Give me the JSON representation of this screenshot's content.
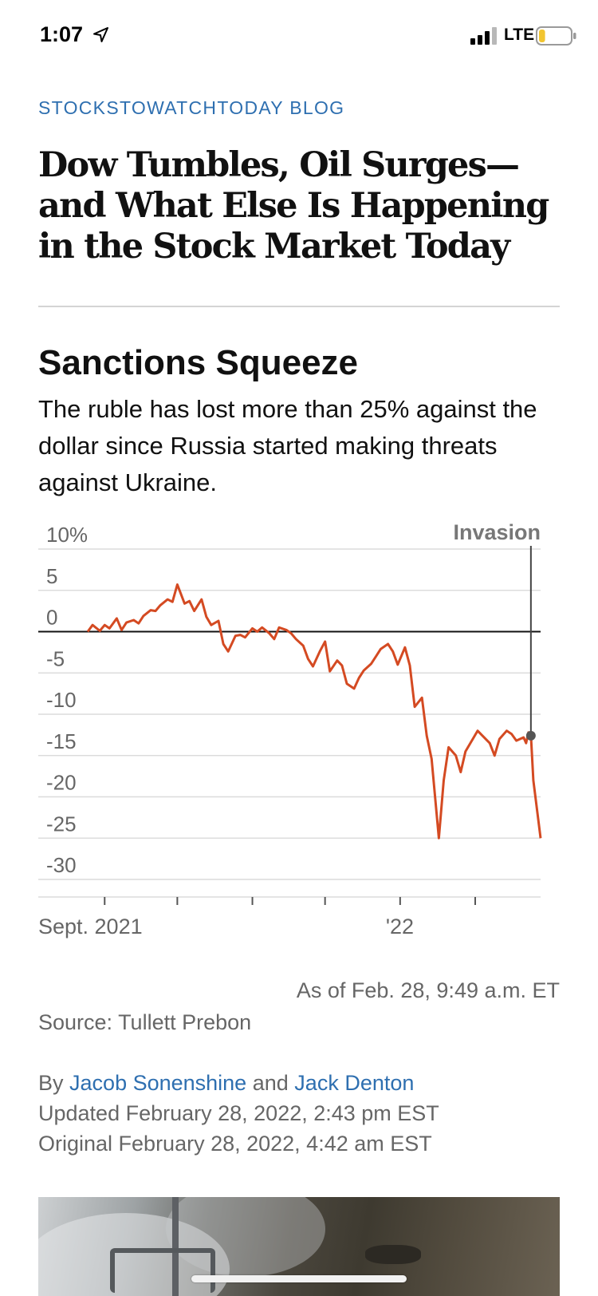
{
  "status_bar": {
    "time": "1:07",
    "carrier": "LTE",
    "battery_level": 0.2,
    "battery_color": "#f2c530"
  },
  "article": {
    "kicker": "STOCKSTOWATCHTODAY BLOG",
    "headline": "Dow Tumbles, Oil Surges—and What Else Is Happening in the Stock Market Today",
    "byline_prefix": "By",
    "author1": "Jacob Sonenshine",
    "byline_conjunction": "and",
    "author2": "Jack Denton",
    "updated": "Updated February 28, 2022, 2:43 pm EST",
    "original": "Original February 28, 2022, 4:42 am EST",
    "link_color": "#2e6fb0"
  },
  "chart_data": {
    "type": "line",
    "title": "Sanctions Squeeze",
    "subtitle": "The ruble has lost more than 25% against the dollar since Russia started making threats against Ukraine.",
    "ylim": [
      -30,
      10
    ],
    "yticks": [
      10,
      5,
      0,
      -5,
      -10,
      -15,
      -20,
      -25,
      -30
    ],
    "ytick_labels": [
      "10%",
      "5",
      "0",
      "-5",
      "-10",
      "-15",
      "-20",
      "-25",
      "-30"
    ],
    "xlim": [
      "2021-08-25",
      "2022-02-28"
    ],
    "x_tick_dates": [
      "2021-09-01",
      "2021-10-01",
      "2021-11-01",
      "2021-12-01",
      "2022-01-01",
      "2022-02-01"
    ],
    "x_tick_labels": [
      {
        "date": "2021-09-01",
        "label": "Sept. 2021"
      },
      {
        "date": "2022-01-01",
        "label": "'22"
      }
    ],
    "annotation": {
      "label": "Invasion",
      "date": "2022-02-24",
      "value": -12.6
    },
    "line_color": "#d44a22",
    "series": [
      {
        "x": [
          "2021-08-25",
          "2021-08-27",
          "2021-08-30",
          "2021-09-01",
          "2021-09-03",
          "2021-09-06",
          "2021-09-08",
          "2021-09-10",
          "2021-09-13",
          "2021-09-15",
          "2021-09-17",
          "2021-09-20",
          "2021-09-22",
          "2021-09-24",
          "2021-09-27",
          "2021-09-29",
          "2021-10-01",
          "2021-10-04",
          "2021-10-06",
          "2021-10-08",
          "2021-10-11",
          "2021-10-13",
          "2021-10-15",
          "2021-10-18",
          "2021-10-20",
          "2021-10-22",
          "2021-10-25",
          "2021-10-27",
          "2021-10-29",
          "2021-11-01",
          "2021-11-03",
          "2021-11-05",
          "2021-11-08",
          "2021-11-10",
          "2021-11-12",
          "2021-11-15",
          "2021-11-17",
          "2021-11-19",
          "2021-11-22",
          "2021-11-24",
          "2021-11-26",
          "2021-11-29",
          "2021-12-01",
          "2021-12-03",
          "2021-12-06",
          "2021-12-08",
          "2021-12-10",
          "2021-12-13",
          "2021-12-15",
          "2021-12-17",
          "2021-12-20",
          "2021-12-22",
          "2021-12-24",
          "2021-12-27",
          "2021-12-29",
          "2021-12-31",
          "2022-01-03",
          "2022-01-05",
          "2022-01-07",
          "2022-01-10",
          "2022-01-12",
          "2022-01-14",
          "2022-01-17",
          "2022-01-19",
          "2022-01-21",
          "2022-01-24",
          "2022-01-26",
          "2022-01-28",
          "2022-01-31",
          "2022-02-02",
          "2022-02-04",
          "2022-02-07",
          "2022-02-09",
          "2022-02-11",
          "2022-02-14",
          "2022-02-16",
          "2022-02-18",
          "2022-02-21",
          "2022-02-22",
          "2022-02-23",
          "2022-02-24",
          "2022-02-25",
          "2022-02-28"
        ],
        "values": [
          0,
          0.8,
          0.1,
          0.8,
          0.4,
          1.6,
          0.2,
          1.1,
          1.4,
          1.0,
          1.9,
          2.6,
          2.5,
          3.2,
          3.9,
          3.6,
          5.7,
          3.4,
          3.7,
          2.5,
          3.9,
          1.8,
          0.8,
          1.3,
          -1.5,
          -2.4,
          -0.5,
          -0.4,
          -0.7,
          0.4,
          0.0,
          0.5,
          -0.2,
          -0.9,
          0.5,
          0.2,
          -0.2,
          -0.9,
          -1.7,
          -3.3,
          -4.2,
          -2.3,
          -1.2,
          -4.8,
          -3.5,
          -4.1,
          -6.3,
          -6.9,
          -5.6,
          -4.7,
          -3.9,
          -3.0,
          -2.1,
          -1.5,
          -2.4,
          -4.0,
          -1.9,
          -4.1,
          -9.1,
          -8.0,
          -12.6,
          -15.4,
          -25.0,
          -18.0,
          -14.0,
          -15.0,
          -17.0,
          -14.5,
          -13.0,
          -12.0,
          -12.6,
          -13.5,
          -15.0,
          -13.0,
          -12.0,
          -12.4,
          -13.2,
          -12.8,
          -13.5,
          -12.2,
          -12.6,
          -18.0,
          -25.0
        ]
      }
    ],
    "source": "Source: Tullett Prebon",
    "as_of": "As of Feb. 28, 9:49 a.m. ET"
  }
}
